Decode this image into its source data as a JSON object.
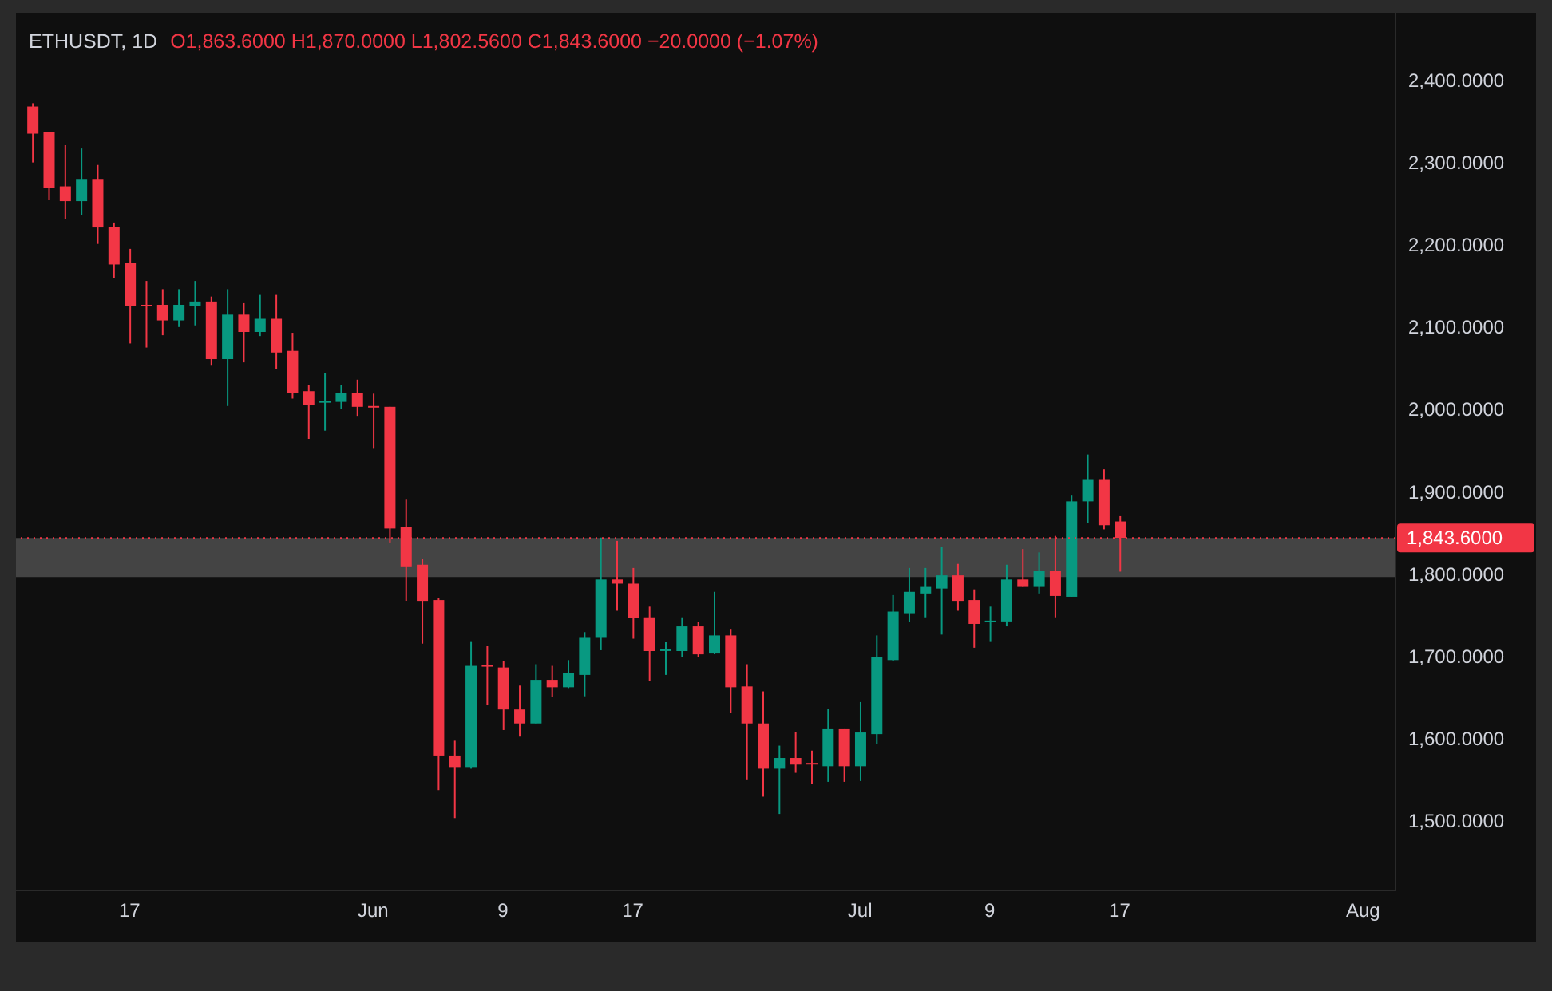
{
  "chart_data": {
    "type": "candlestick",
    "title": "ETHUSDT, 1D",
    "subtitle": "O1,863.6000 H1,870.0000 L1,802.5600 C1,843.6000 −20.0000 (−1.07%)",
    "x": [
      "--05-11",
      "--05-12",
      "--05-13",
      "--05-14",
      "--05-15",
      "--05-16",
      "--05-17",
      "--05-18",
      "--05-19",
      "--05-20",
      "--05-21",
      "--05-22",
      "--05-23",
      "--05-24",
      "--05-25",
      "--05-26",
      "--05-27",
      "--05-28",
      "--05-29",
      "--05-30",
      "--05-31",
      "--06-01",
      "--06-02",
      "--06-03",
      "--06-04",
      "--06-05",
      "--06-06",
      "--06-07",
      "--06-08",
      "--06-09",
      "--06-10",
      "--06-11",
      "--06-12",
      "--06-13",
      "--06-14",
      "--06-15",
      "--06-16",
      "--06-17",
      "--06-18",
      "--06-19",
      "--06-20",
      "--06-21",
      "--06-22",
      "--06-23",
      "--06-24",
      "--06-25",
      "--06-26",
      "--06-27",
      "--06-28",
      "--06-29",
      "--06-30",
      "--07-01",
      "--07-02",
      "--07-03",
      "--07-04",
      "--07-05",
      "--07-06",
      "--07-07",
      "--07-08",
      "--07-09",
      "--07-10",
      "--07-11",
      "--07-12",
      "--07-13",
      "--07-14",
      "--07-15",
      "--07-16",
      "--07-17"
    ],
    "ohlc": [
      [
        2368,
        2372,
        2300,
        2335
      ],
      [
        2337,
        2337,
        2254,
        2269
      ],
      [
        2271,
        2321,
        2231,
        2253
      ],
      [
        2253,
        2317,
        2236,
        2280
      ],
      [
        2280,
        2297,
        2201,
        2221
      ],
      [
        2222,
        2227,
        2159,
        2176
      ],
      [
        2178,
        2195,
        2080,
        2126
      ],
      [
        2127,
        2156,
        2075,
        2126
      ],
      [
        2127,
        2146,
        2090,
        2108
      ],
      [
        2108,
        2146,
        2100,
        2127
      ],
      [
        2126,
        2156,
        2102,
        2131
      ],
      [
        2131,
        2137,
        2053,
        2061
      ],
      [
        2061,
        2146,
        2004,
        2115
      ],
      [
        2115,
        2129,
        2057,
        2094
      ],
      [
        2094,
        2139,
        2089,
        2110
      ],
      [
        2110,
        2139,
        2049,
        2069
      ],
      [
        2071,
        2093,
        2013,
        2020
      ],
      [
        2022,
        2029,
        1964,
        2005
      ],
      [
        2008,
        2044,
        1974,
        2010
      ],
      [
        2009,
        2030,
        2000,
        2020
      ],
      [
        2020,
        2036,
        1992,
        2003
      ],
      [
        2004,
        2019,
        1952,
        2003
      ],
      [
        2003,
        2003,
        1838,
        1855
      ],
      [
        1857,
        1890,
        1767,
        1809
      ],
      [
        1811,
        1818,
        1715,
        1767
      ],
      [
        1768,
        1770,
        1537,
        1579
      ],
      [
        1579,
        1597,
        1503,
        1565
      ],
      [
        1565,
        1718,
        1563,
        1688
      ],
      [
        1689,
        1712,
        1640,
        1687
      ],
      [
        1686,
        1694,
        1610,
        1635
      ],
      [
        1635,
        1664,
        1602,
        1618
      ],
      [
        1618,
        1690,
        1618,
        1671
      ],
      [
        1671,
        1688,
        1650,
        1662
      ],
      [
        1662,
        1695,
        1661,
        1679
      ],
      [
        1677,
        1729,
        1651,
        1723
      ],
      [
        1723,
        1844,
        1707,
        1793
      ],
      [
        1793,
        1840,
        1755,
        1788
      ],
      [
        1788,
        1807,
        1721,
        1746
      ],
      [
        1747,
        1760,
        1670,
        1706
      ],
      [
        1707,
        1717,
        1677,
        1708
      ],
      [
        1706,
        1747,
        1699,
        1736
      ],
      [
        1736,
        1741,
        1699,
        1702
      ],
      [
        1703,
        1778,
        1702,
        1725
      ],
      [
        1725,
        1733,
        1631,
        1662
      ],
      [
        1663,
        1690,
        1550,
        1618
      ],
      [
        1618,
        1657,
        1529,
        1563
      ],
      [
        1563,
        1591,
        1508,
        1576
      ],
      [
        1576,
        1608,
        1558,
        1568
      ],
      [
        1570,
        1585,
        1545,
        1569
      ],
      [
        1566,
        1636,
        1547,
        1611
      ],
      [
        1611,
        1611,
        1547,
        1566
      ],
      [
        1566,
        1644,
        1548,
        1607
      ],
      [
        1605,
        1725,
        1593,
        1699
      ],
      [
        1695,
        1774,
        1694,
        1754
      ],
      [
        1752,
        1807,
        1741,
        1778
      ],
      [
        1776,
        1807,
        1747,
        1784
      ],
      [
        1782,
        1833,
        1726,
        1798
      ],
      [
        1798,
        1812,
        1755,
        1767
      ],
      [
        1768,
        1781,
        1710,
        1739
      ],
      [
        1742,
        1760,
        1718,
        1743
      ],
      [
        1742,
        1811,
        1736,
        1793
      ],
      [
        1793,
        1830,
        1784,
        1784
      ],
      [
        1784,
        1826,
        1776,
        1804
      ],
      [
        1804,
        1846,
        1747,
        1773
      ],
      [
        1772,
        1895,
        1772,
        1888
      ],
      [
        1888,
        1945,
        1862,
        1915
      ],
      [
        1915,
        1927,
        1854,
        1859
      ],
      [
        1863.6,
        1870,
        1802.56,
        1843.6
      ]
    ],
    "colors": [
      "#f23645",
      "#f23645",
      "#f23645",
      "#089981",
      "#f23645",
      "#f23645",
      "#f23645",
      "#f23645",
      "#f23645",
      "#089981",
      "#089981",
      "#f23645",
      "#089981",
      "#f23645",
      "#089981",
      "#f23645",
      "#f23645",
      "#f23645",
      "#089981",
      "#089981",
      "#f23645",
      "#f23645",
      "#f23645",
      "#f23645",
      "#f23645",
      "#f23645",
      "#f23645",
      "#089981",
      "#f23645",
      "#f23645",
      "#f23645",
      "#089981",
      "#f23645",
      "#089981",
      "#089981",
      "#089981",
      "#f23645",
      "#f23645",
      "#f23645",
      "#089981",
      "#089981",
      "#f23645",
      "#089981",
      "#f23645",
      "#f23645",
      "#f23645",
      "#089981",
      "#f23645",
      "#f23645",
      "#089981",
      "#f23645",
      "#089981",
      "#089981",
      "#089981",
      "#089981",
      "#089981",
      "#089981",
      "#f23645",
      "#f23645",
      "#089981",
      "#089981",
      "#f23645",
      "#089981",
      "#f23645",
      "#089981",
      "#089981",
      "#f23645",
      "#f23645"
    ],
    "xlim": [
      "--05-10",
      "--08-03"
    ],
    "xticks": [
      {
        "value": "--05-17",
        "label": "17"
      },
      {
        "value": "--06-01",
        "label": "Jun"
      },
      {
        "value": "--06-09",
        "label": "9"
      },
      {
        "value": "--06-17",
        "label": "17"
      },
      {
        "value": "--07-01",
        "label": "Jul"
      },
      {
        "value": "--07-09",
        "label": "9"
      },
      {
        "value": "--07-17",
        "label": "17"
      },
      {
        "value": "--08-01",
        "label": "Aug"
      }
    ],
    "ylim": [
      1415,
      2482
    ],
    "yticks": [
      {
        "value": 1500,
        "label": "1,500.0000"
      },
      {
        "value": 1600,
        "label": "1,600.0000"
      },
      {
        "value": 1700,
        "label": "1,700.0000"
      },
      {
        "value": 1800,
        "label": "1,800.0000"
      },
      {
        "value": 1900,
        "label": "1,900.0000"
      },
      {
        "value": 2000,
        "label": "2,000.0000"
      },
      {
        "value": 2100,
        "label": "2,100.0000"
      },
      {
        "value": 2200,
        "label": "2,200.0000"
      },
      {
        "value": 2300,
        "label": "2,300.0000"
      },
      {
        "value": 2400,
        "label": "2,400.0000"
      }
    ],
    "ref_lines": [
      {
        "axis": "y",
        "value": 1843.6,
        "label": "1,843.6000",
        "color": "#f23645",
        "line_style": "dotted"
      }
    ],
    "bands": [
      {
        "axis": "y",
        "from": 1796,
        "to": 1843.6,
        "color": "#4a4a4a"
      }
    ]
  }
}
